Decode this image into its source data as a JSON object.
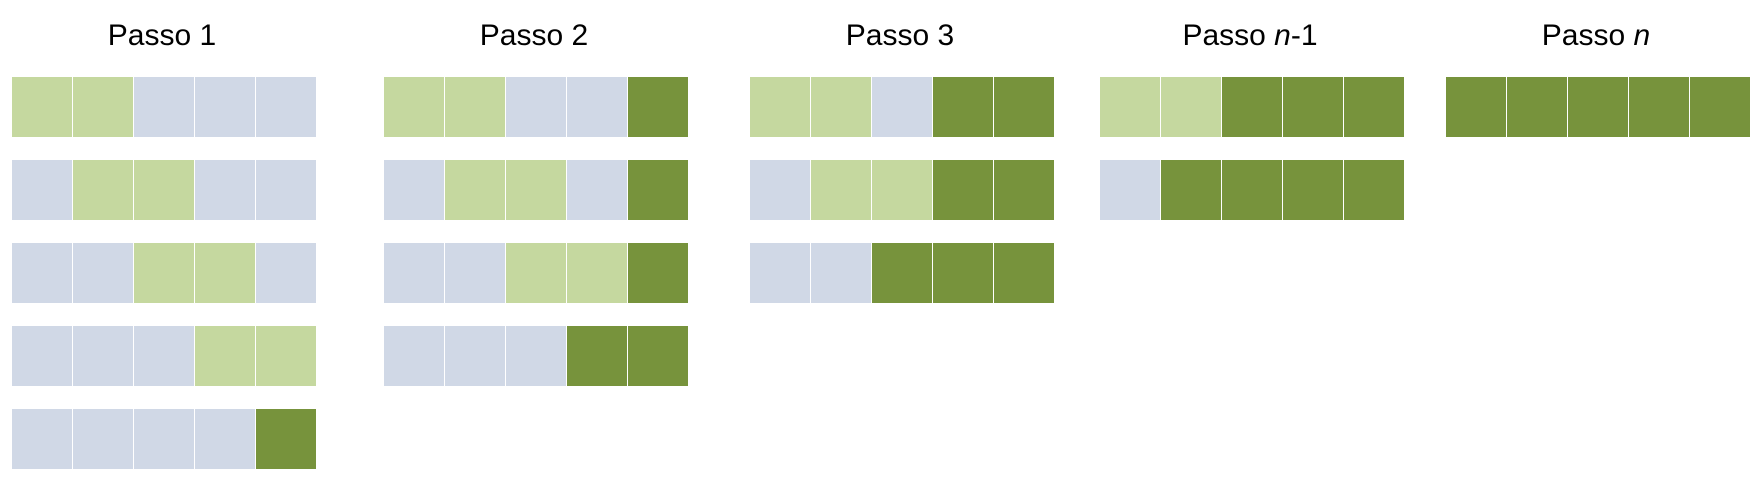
{
  "colors": {
    "unsorted": "#d0d8e6",
    "comparing": "#c5d89f",
    "sorted": "#77933c"
  },
  "steps": [
    {
      "title": {
        "prefix": "Passo ",
        "italic": "",
        "suffix": "1"
      },
      "rows": [
        [
          "comparing",
          "comparing",
          "unsorted",
          "unsorted",
          "unsorted"
        ],
        [
          "unsorted",
          "comparing",
          "comparing",
          "unsorted",
          "unsorted"
        ],
        [
          "unsorted",
          "unsorted",
          "comparing",
          "comparing",
          "unsorted"
        ],
        [
          "unsorted",
          "unsorted",
          "unsorted",
          "comparing",
          "comparing"
        ],
        [
          "unsorted",
          "unsorted",
          "unsorted",
          "unsorted",
          "sorted"
        ]
      ]
    },
    {
      "title": {
        "prefix": "Passo ",
        "italic": "",
        "suffix": "2"
      },
      "rows": [
        [
          "comparing",
          "comparing",
          "unsorted",
          "unsorted",
          "sorted"
        ],
        [
          "unsorted",
          "comparing",
          "comparing",
          "unsorted",
          "sorted"
        ],
        [
          "unsorted",
          "unsorted",
          "comparing",
          "comparing",
          "sorted"
        ],
        [
          "unsorted",
          "unsorted",
          "unsorted",
          "sorted",
          "sorted"
        ]
      ]
    },
    {
      "title": {
        "prefix": "Passo ",
        "italic": "",
        "suffix": "3"
      },
      "rows": [
        [
          "comparing",
          "comparing",
          "unsorted",
          "sorted",
          "sorted"
        ],
        [
          "unsorted",
          "comparing",
          "comparing",
          "sorted",
          "sorted"
        ],
        [
          "unsorted",
          "unsorted",
          "sorted",
          "sorted",
          "sorted"
        ]
      ]
    },
    {
      "title": {
        "prefix": "Passo ",
        "italic": "n",
        "suffix": "-1"
      },
      "rows": [
        [
          "comparing",
          "comparing",
          "sorted",
          "sorted",
          "sorted"
        ],
        [
          "unsorted",
          "sorted",
          "sorted",
          "sorted",
          "sorted"
        ]
      ]
    },
    {
      "title": {
        "prefix": "Passo ",
        "italic": "n",
        "suffix": ""
      },
      "rows": [
        [
          "sorted",
          "sorted",
          "sorted",
          "sorted",
          "sorted"
        ]
      ]
    }
  ]
}
